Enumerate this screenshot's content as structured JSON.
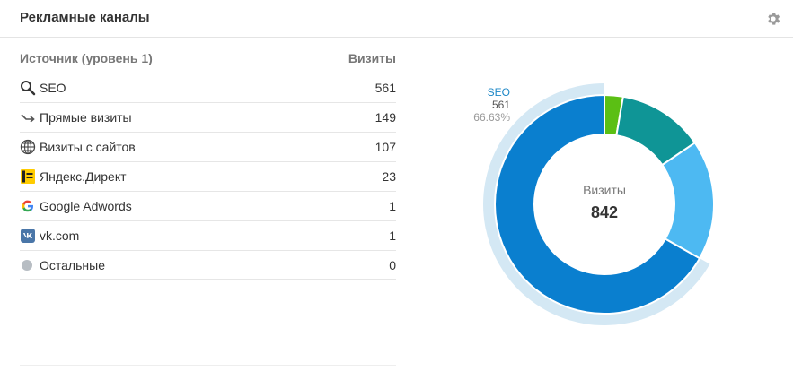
{
  "widget": {
    "title": "Рекламные каналы"
  },
  "table": {
    "col_source": "Источник (уровень 1)",
    "col_visits": "Визиты",
    "rows": [
      {
        "label": "SEO",
        "value": "561",
        "icon": "search-icon"
      },
      {
        "label": "Прямые визиты",
        "value": "149",
        "icon": "direct-arrow-icon"
      },
      {
        "label": "Визиты с сайтов",
        "value": "107",
        "icon": "globe-icon"
      },
      {
        "label": "Яндекс.Директ",
        "value": "23",
        "icon": "yandex-direct-icon"
      },
      {
        "label": "Google Adwords",
        "value": "1",
        "icon": "google-icon"
      },
      {
        "label": "vk.com",
        "value": "1",
        "icon": "vk-icon"
      },
      {
        "label": "Остальные",
        "value": "0",
        "icon": "grey-dot-icon"
      }
    ]
  },
  "chart_data": {
    "type": "pie",
    "center_label": "Визиты",
    "total": "842",
    "highlight": {
      "name": "SEO",
      "value": "561",
      "percent": "66.63%"
    },
    "slices": [
      {
        "name": "SEO",
        "value": 561,
        "color": "#0a7fcf"
      },
      {
        "name": "Яндекс.Директ",
        "value": 23,
        "color": "#5bbf14"
      },
      {
        "name": "Визиты с сайтов",
        "value": 107,
        "color": "#0f9596"
      },
      {
        "name": "Прямые визиты",
        "value": 149,
        "color": "#4db9f2"
      }
    ]
  }
}
